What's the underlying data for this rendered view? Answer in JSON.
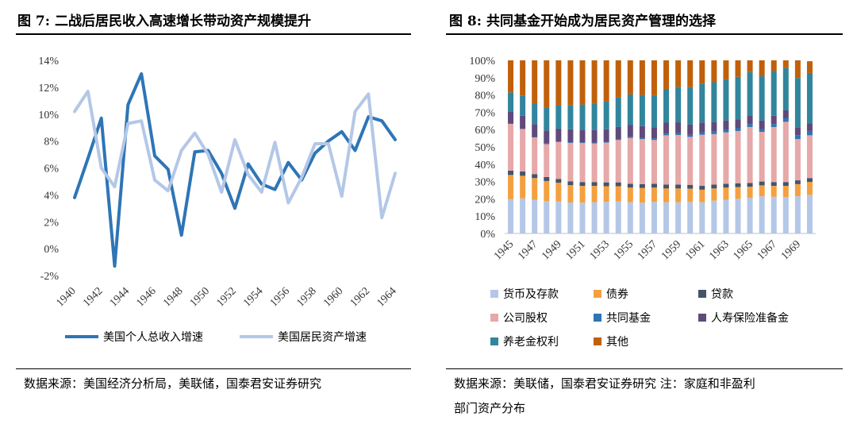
{
  "figures": [
    {
      "title": "图 7: 二战后居民收入高速增长带动资产规模提升",
      "source": [
        "数据来源：美国经济分析局，美联储，国泰君安证券研究"
      ]
    },
    {
      "title": "图 8: 共同基金开始成为居民资产管理的选择",
      "source": [
        "数据来源：美联储，国泰君安证券研究  注：家庭和非盈利",
        "部门资产分布"
      ]
    }
  ],
  "chart_data": [
    {
      "type": "line",
      "x": [
        1940,
        1941,
        1942,
        1943,
        1944,
        1945,
        1946,
        1947,
        1948,
        1949,
        1950,
        1951,
        1952,
        1953,
        1954,
        1955,
        1956,
        1957,
        1958,
        1959,
        1960,
        1961,
        1962,
        1963,
        1964
      ],
      "xticks": [
        "1940",
        "1942",
        "1944",
        "1946",
        "1948",
        "1950",
        "1952",
        "1954",
        "1956",
        "1958",
        "1960",
        "1962",
        "1964"
      ],
      "yticks": [
        "-2%",
        "0%",
        "2%",
        "4%",
        "6%",
        "8%",
        "10%",
        "12%",
        "14%"
      ],
      "ylim": [
        -2,
        14
      ],
      "legend_position": "bottom",
      "series": [
        {
          "name": "美国个人总收入增速",
          "color": "#2e75b6",
          "values": [
            3.8,
            6.7,
            9.7,
            -1.3,
            10.7,
            13.0,
            6.9,
            5.9,
            1.0,
            7.2,
            7.3,
            5.6,
            3.0,
            6.3,
            4.8,
            4.4,
            6.4,
            5.1,
            7.1,
            8.0,
            8.7,
            7.3,
            9.8,
            9.5,
            8.1
          ]
        },
        {
          "name": "美国居民资产增速",
          "color": "#b4c7e7",
          "values": [
            10.2,
            11.7,
            6.0,
            4.6,
            9.3,
            9.5,
            5.1,
            4.3,
            7.3,
            8.6,
            7.0,
            4.2,
            8.1,
            5.5,
            4.2,
            7.9,
            3.4,
            5.3,
            7.8,
            7.8,
            3.9,
            10.2,
            11.5,
            2.3,
            5.6
          ]
        }
      ]
    },
    {
      "type": "bar",
      "stacked": true,
      "categories": [
        1945,
        1946,
        1947,
        1948,
        1949,
        1950,
        1951,
        1952,
        1953,
        1954,
        1955,
        1956,
        1957,
        1958,
        1959,
        1960,
        1961,
        1962,
        1963,
        1964,
        1965,
        1966,
        1967,
        1968,
        1969,
        1970
      ],
      "xticks": [
        "1945",
        "1947",
        "1949",
        "1951",
        "1953",
        "1955",
        "1957",
        "1959",
        "1961",
        "1963",
        "1965",
        "1967",
        "1969"
      ],
      "yticks": [
        "0%",
        "10%",
        "20%",
        "30%",
        "40%",
        "50%",
        "60%",
        "70%",
        "80%",
        "90%",
        "100%"
      ],
      "ylim": [
        0,
        100
      ],
      "legend_position": "bottom",
      "series": [
        {
          "name": "货币及存款",
          "color": "#b4c7e7",
          "values": [
            19.8,
            20.3,
            19.5,
            18.8,
            18.5,
            17.9,
            17.8,
            18.0,
            18.3,
            18.5,
            18.0,
            17.8,
            18.2,
            18.0,
            18.0,
            18.2,
            18.0,
            19.0,
            19.5,
            20.0,
            20.5,
            21.5,
            21.2,
            21.0,
            21.5,
            22.3
          ]
        },
        {
          "name": "债券",
          "color": "#f4a040",
          "values": [
            14.0,
            13.0,
            12.5,
            11.5,
            10.8,
            10.0,
            9.7,
            9.5,
            9.0,
            8.8,
            8.5,
            8.5,
            8.3,
            8.0,
            8.0,
            7.7,
            7.3,
            7.0,
            7.0,
            6.8,
            6.5,
            6.3,
            6.3,
            6.5,
            7.0,
            7.5
          ]
        },
        {
          "name": "贷款",
          "color": "#44546a",
          "values": [
            2.5,
            2.5,
            2.3,
            2.3,
            2.2,
            2.2,
            2.2,
            2.2,
            2.2,
            2.2,
            2.2,
            2.2,
            2.2,
            2.2,
            2.2,
            2.2,
            2.2,
            2.2,
            2.2,
            2.2,
            2.2,
            2.2,
            2.2,
            2.2,
            2.2,
            2.2
          ]
        },
        {
          "name": "公司股权",
          "color": "#e6a8a8",
          "values": [
            27.0,
            24.5,
            21.2,
            19.0,
            21.3,
            22.2,
            22.5,
            22.3,
            23.0,
            24.5,
            26.5,
            26.0,
            25.3,
            28.5,
            28.7,
            27.7,
            29.5,
            29.2,
            29.7,
            30.2,
            32.3,
            28.7,
            31.8,
            34.8,
            23.8,
            24.7
          ]
        },
        {
          "name": "共同基金",
          "color": "#2e75b6",
          "values": [
            0.2,
            0.2,
            0.2,
            0.3,
            0.3,
            0.4,
            0.4,
            0.5,
            0.5,
            0.6,
            0.8,
            0.8,
            0.9,
            1.0,
            1.1,
            1.2,
            1.3,
            1.4,
            1.5,
            1.6,
            1.7,
            1.6,
            1.7,
            2.0,
            2.3,
            2.5
          ]
        },
        {
          "name": "人寿保险准备金",
          "color": "#604a7b",
          "values": [
            7.0,
            7.5,
            7.5,
            7.6,
            7.5,
            7.5,
            7.4,
            7.3,
            7.2,
            7.0,
            6.8,
            6.7,
            6.5,
            6.3,
            6.2,
            6.0,
            5.8,
            5.6,
            5.4,
            5.2,
            5.0,
            5.0,
            4.8,
            4.6,
            4.5,
            4.5
          ]
        },
        {
          "name": "养老金权利",
          "color": "#31859c",
          "values": [
            11.0,
            11.5,
            12.0,
            13.0,
            13.5,
            14.0,
            14.5,
            15.0,
            16.0,
            17.0,
            17.5,
            18.0,
            18.5,
            19.5,
            20.5,
            21.5,
            22.5,
            23.0,
            23.5,
            24.5,
            25.0,
            25.5,
            26.0,
            24.5,
            28.5,
            29.0
          ]
        },
        {
          "name": "其他",
          "color": "#c0600a",
          "values": [
            18.5,
            20.5,
            24.8,
            27.5,
            25.9,
            25.8,
            25.5,
            25.2,
            23.8,
            21.4,
            19.7,
            20.0,
            20.1,
            16.5,
            15.3,
            15.5,
            13.4,
            12.6,
            11.2,
            9.5,
            6.8,
            9.2,
            6.0,
            4.4,
            10.2,
            6.8
          ]
        }
      ]
    }
  ]
}
